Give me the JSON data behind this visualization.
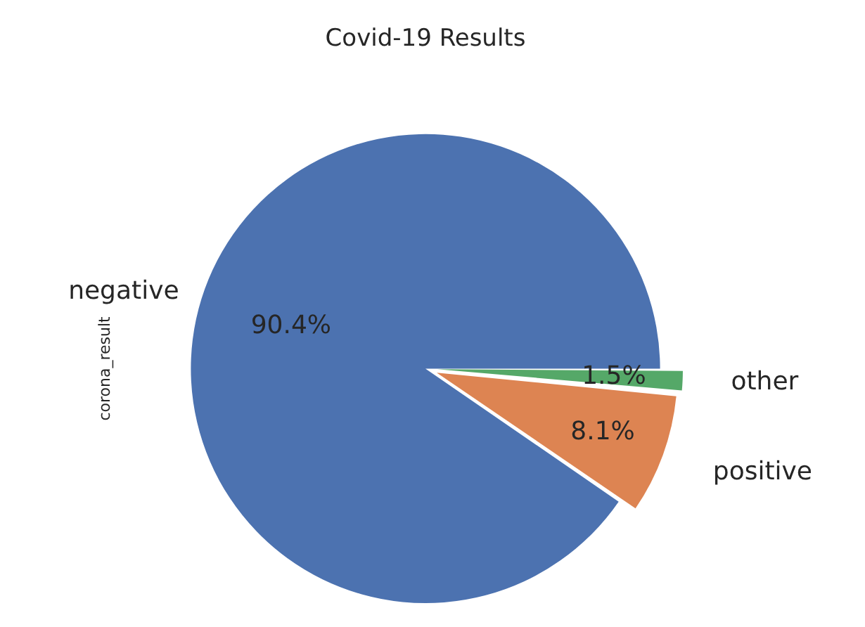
{
  "chart_data": {
    "type": "pie",
    "title": "Covid-19 Results",
    "ylabel": "corona_result",
    "categories": [
      "negative",
      "positive",
      "other"
    ],
    "values": [
      90.4,
      8.1,
      1.5
    ],
    "colors": [
      "#4c72b0",
      "#dd8452",
      "#55a868"
    ],
    "value_labels": [
      "90.4%",
      "8.1%",
      "1.5%"
    ],
    "legend": false
  }
}
